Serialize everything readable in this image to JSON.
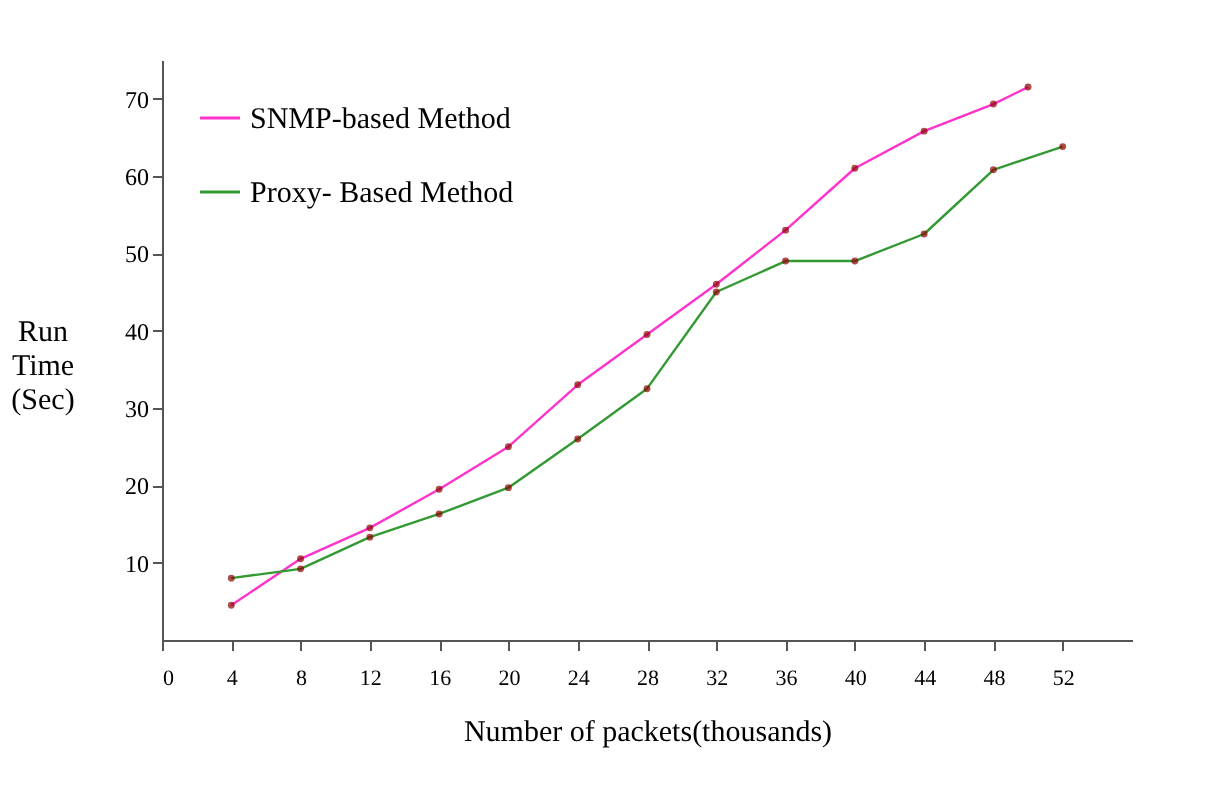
{
  "chart_data": {
    "type": "line",
    "xlabel": "Number of packets(thousands)",
    "ylabel": "Run Time (Sec)",
    "xlim": [
      0,
      56
    ],
    "xticks": [
      0,
      4,
      8,
      12,
      16,
      20,
      24,
      28,
      32,
      36,
      40,
      44,
      48,
      52
    ],
    "ylim": [
      0,
      75
    ],
    "yticks": [
      10,
      20,
      30,
      40,
      50,
      60,
      70
    ],
    "grid": false,
    "legend": "top left",
    "marker": "circle",
    "line_style": "solid",
    "series": [
      {
        "name": "SNMP-based Method",
        "color": "#ff33cc",
        "x": [
          4,
          8,
          12,
          16,
          20,
          24,
          28,
          32,
          36,
          40,
          44,
          48,
          50
        ],
        "values": [
          4.5,
          10.5,
          14.5,
          19.5,
          25,
          33,
          39.5,
          46,
          53,
          61,
          65.8,
          69.3,
          71.5
        ]
      },
      {
        "name": "Proxy- Based Method",
        "color": "#339933",
        "x": [
          4,
          8,
          12,
          16,
          20,
          24,
          28,
          32,
          36,
          40,
          44,
          48,
          52
        ],
        "values": [
          8,
          9.2,
          13.3,
          16.3,
          19.7,
          26,
          32.5,
          45,
          49,
          49,
          52.5,
          60.8,
          63.8
        ]
      }
    ]
  }
}
